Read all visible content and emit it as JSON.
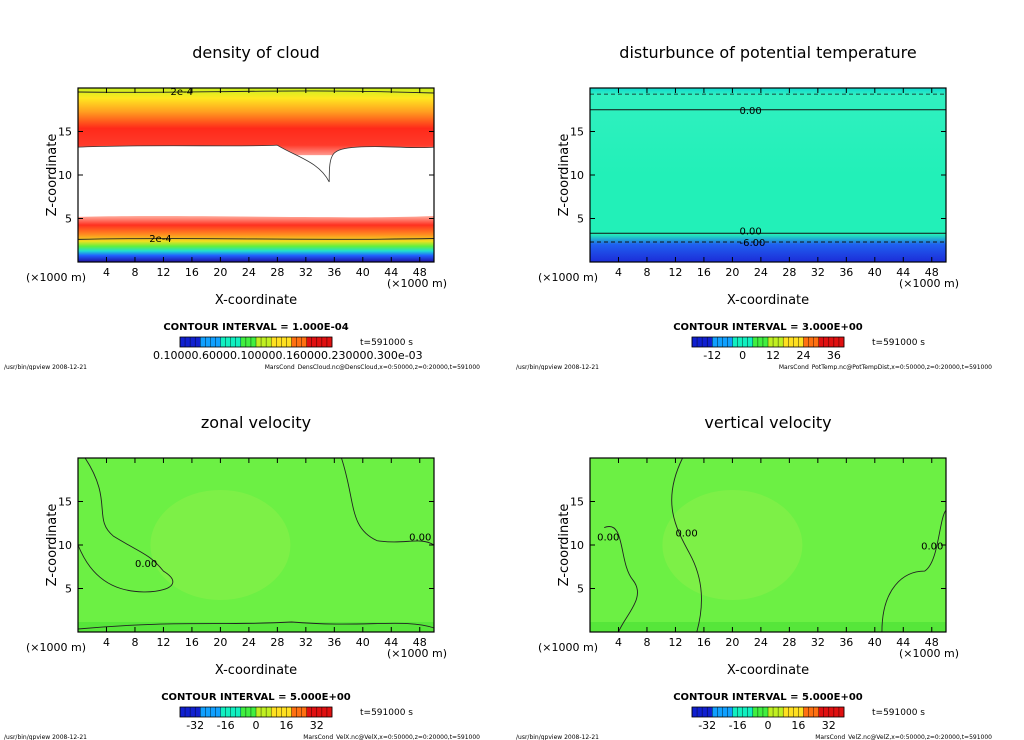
{
  "colors": {
    "accent": "#7cf03a",
    "cloud_core": "#ff2a1a",
    "theta_field": "#22f0b8",
    "theta_low": "#1c2cd8",
    "velocity_field": "#6cf044"
  },
  "chart_data": [
    {
      "type": "heatmap",
      "title": "density of cloud",
      "xlabel": "X-coordinate",
      "ylabel": "Z-coordinate",
      "x_unit_label": "(×1000 m)",
      "y_unit_label": "(×1000 m)",
      "xlim": [
        0,
        50
      ],
      "ylim": [
        0,
        20
      ],
      "xticks": [
        "4",
        "8",
        "12",
        "16",
        "20",
        "24",
        "28",
        "32",
        "36",
        "40",
        "44",
        "48"
      ],
      "yticks": [
        "5",
        "10",
        "15"
      ],
      "contour_interval": "CONTOUR INTERVAL = 1.000E-04",
      "time": "t=591000 s",
      "colorbar_labels": "0.10000.60000.100000.160000.230000.300e-03",
      "contour_labels": [
        "2e-4",
        "2e-4"
      ],
      "footer_left": "/usr/bin/gpview   2008-12-21",
      "footer_right": "MarsCond_DensCloud.nc@DensCloud,x=0:50000,z=0:20000,t=591000",
      "features": {
        "cloud_free_band": [
          13.2,
          5.3
        ],
        "upper_cloud_peak_z": 15.5,
        "lower_cloud_peak_z": 4.2,
        "intrusion_x": 35,
        "intrusion_bottom_z": 9.2
      }
    },
    {
      "type": "heatmap",
      "title": "disturbunce of potential temperature",
      "xlabel": "X-coordinate",
      "ylabel": "Z-coordinate",
      "x_unit_label": "(×1000 m)",
      "y_unit_label": "(×1000 m)",
      "xlim": [
        0,
        50
      ],
      "ylim": [
        0,
        20
      ],
      "xticks": [
        "4",
        "8",
        "12",
        "16",
        "20",
        "24",
        "28",
        "32",
        "36",
        "40",
        "44",
        "48"
      ],
      "yticks": [
        "5",
        "10",
        "15"
      ],
      "contour_interval": "CONTOUR INTERVAL = 3.000E+00",
      "time": "t=591000 s",
      "colorbar_ticks": [
        "-12",
        "0",
        "12",
        "24",
        "36"
      ],
      "colorbar_range": [
        -20,
        40
      ],
      "contour_labels": [
        "0.00",
        "0.00",
        "-6.00"
      ],
      "contour_levels_z": [
        17.5,
        3.3,
        2.3
      ],
      "footer_left": "/usr/bin/gpview   2008-12-21",
      "footer_right": "MarsCond_PotTemp.nc@PotTempDist,x=0:50000,z=0:20000,t=591000"
    },
    {
      "type": "heatmap",
      "title": "zonal velocity",
      "xlabel": "X-coordinate",
      "ylabel": "Z-coordinate",
      "x_unit_label": "(×1000 m)",
      "y_unit_label": "(×1000 m)",
      "xlim": [
        0,
        50
      ],
      "ylim": [
        0,
        20
      ],
      "xticks": [
        "4",
        "8",
        "12",
        "16",
        "20",
        "24",
        "28",
        "32",
        "36",
        "40",
        "44",
        "48"
      ],
      "yticks": [
        "5",
        "10",
        "15"
      ],
      "contour_interval": "CONTOUR INTERVAL = 5.000E+00",
      "time": "t=591000 s",
      "colorbar_ticks": [
        "-32",
        "-16",
        "0",
        "16",
        "32"
      ],
      "colorbar_range": [
        -40,
        40
      ],
      "contour_labels": [
        "0.00",
        "0.00"
      ],
      "footer_left": "/usr/bin/gpview   2008-12-21",
      "footer_right": "MarsCond_VelX.nc@VelX,x=0:50000,z=0:20000,t=591000"
    },
    {
      "type": "heatmap",
      "title": "vertical velocity",
      "xlabel": "X-coordinate",
      "ylabel": "Z-coordinate",
      "x_unit_label": "(×1000 m)",
      "y_unit_label": "(×1000 m)",
      "xlim": [
        0,
        50
      ],
      "ylim": [
        0,
        20
      ],
      "xticks": [
        "4",
        "8",
        "12",
        "16",
        "20",
        "24",
        "28",
        "32",
        "36",
        "40",
        "44",
        "48"
      ],
      "yticks": [
        "5",
        "10",
        "15"
      ],
      "contour_interval": "CONTOUR INTERVAL = 5.000E+00",
      "time": "t=591000 s",
      "colorbar_ticks": [
        "-32",
        "-16",
        "0",
        "16",
        "32"
      ],
      "colorbar_range": [
        -40,
        40
      ],
      "contour_labels": [
        "0.00",
        "0.00",
        "0.00"
      ],
      "footer_left": "/usr/bin/gpview   2008-12-21",
      "footer_right": "MarsCond_VelZ.nc@VelZ,x=0:50000,z=0:20000,t=591000"
    }
  ]
}
